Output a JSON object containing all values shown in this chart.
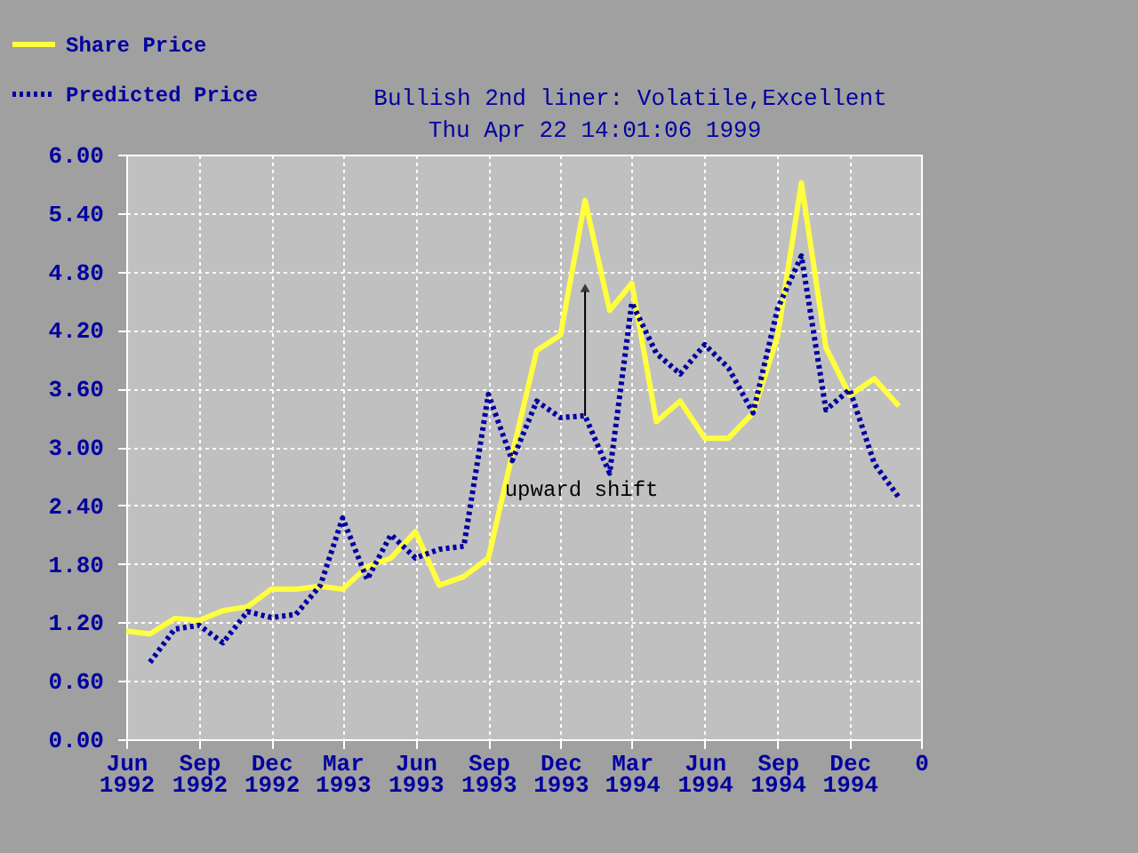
{
  "chart_data": {
    "type": "line",
    "title": "Bullish  2nd liner: Volatile,Excellent",
    "subtitle": "Thu Apr 22 14:01:06 1999",
    "series": [
      {
        "name": "Share Price",
        "color": "#ffff40",
        "line_style": "solid",
        "x": [
          "1992-06",
          "1992-07",
          "1992-08",
          "1992-09",
          "1992-10",
          "1992-11",
          "1992-12",
          "1993-01",
          "1993-02",
          "1993-03",
          "1993-04",
          "1993-05",
          "1993-06",
          "1993-07",
          "1993-08",
          "1993-09",
          "1993-10",
          "1993-11",
          "1993-12",
          "1994-01",
          "1994-02",
          "1994-03",
          "1994-04",
          "1994-05",
          "1994-06",
          "1994-07",
          "1994-08",
          "1994-09",
          "1994-10",
          "1994-11",
          "1994-12",
          "1995-01",
          "1995-02"
        ],
        "values": [
          1.11,
          1.08,
          1.24,
          1.22,
          1.32,
          1.36,
          1.54,
          1.54,
          1.57,
          1.54,
          1.77,
          1.86,
          2.13,
          1.58,
          1.67,
          1.86,
          2.92,
          3.99,
          4.15,
          5.53,
          4.4,
          4.68,
          3.26,
          3.47,
          3.09,
          3.09,
          3.35,
          4.14,
          5.71,
          4.02,
          3.53,
          3.7,
          3.42
        ]
      },
      {
        "name": "Predicted Price",
        "color": "#0000a0",
        "line_style": "dotted",
        "x": [
          "1992-07",
          "1992-08",
          "1992-09",
          "1992-10",
          "1992-11",
          "1992-12",
          "1993-01",
          "1993-02",
          "1993-03",
          "1993-04",
          "1993-05",
          "1993-06",
          "1993-07",
          "1993-08",
          "1993-09",
          "1993-10",
          "1993-11",
          "1993-12",
          "1994-01",
          "1994-02",
          "1994-03",
          "1994-04",
          "1994-05",
          "1994-06",
          "1994-07",
          "1994-08",
          "1994-09",
          "1994-10",
          "1994-11",
          "1994-12",
          "1995-01",
          "1995-02"
        ],
        "values": [
          0.79,
          1.13,
          1.17,
          0.99,
          1.31,
          1.25,
          1.28,
          1.58,
          2.27,
          1.64,
          2.1,
          1.86,
          1.95,
          1.98,
          3.54,
          2.86,
          3.47,
          3.3,
          3.32,
          2.73,
          4.48,
          3.96,
          3.75,
          4.05,
          3.81,
          3.35,
          4.42,
          4.96,
          3.38,
          3.59,
          2.83,
          2.48
        ]
      }
    ],
    "xlim": [
      "1992-06",
      "1995-03"
    ],
    "xticks": [
      {
        "value": "1992-06",
        "label": "Jun 1992"
      },
      {
        "value": "1992-09",
        "label": "Sep 1992"
      },
      {
        "value": "1992-12",
        "label": "Dec 1992"
      },
      {
        "value": "1993-03",
        "label": "Mar 1993"
      },
      {
        "value": "1993-06",
        "label": "Jun 1993"
      },
      {
        "value": "1993-09",
        "label": "Sep 1993"
      },
      {
        "value": "1993-12",
        "label": "Dec 1993"
      },
      {
        "value": "1994-03",
        "label": "Mar 1994"
      },
      {
        "value": "1994-06",
        "label": "Jun 1994"
      },
      {
        "value": "1994-09",
        "label": "Sep 1994"
      },
      {
        "value": "1994-12",
        "label": "Dec 1994"
      },
      {
        "value": "1995-03",
        "label": "0"
      }
    ],
    "ylim": [
      0,
      6
    ],
    "yticks": [
      {
        "value": 0,
        "label": "0.00"
      },
      {
        "value": 0.6,
        "label": "0.60"
      },
      {
        "value": 1.2,
        "label": "1.20"
      },
      {
        "value": 1.8,
        "label": "1.80"
      },
      {
        "value": 2.4,
        "label": "2.40"
      },
      {
        "value": 3.0,
        "label": "3.00"
      },
      {
        "value": 3.6,
        "label": "3.60"
      },
      {
        "value": 4.2,
        "label": "4.20"
      },
      {
        "value": 4.8,
        "label": "4.80"
      },
      {
        "value": 5.4,
        "label": "5.40"
      },
      {
        "value": 6.0,
        "label": "6.00"
      }
    ],
    "annotations": [
      {
        "text": "upward shift",
        "x": "1994-01",
        "y": 3.32
      }
    ],
    "grid": true,
    "legend": "top left",
    "marker": "none"
  }
}
